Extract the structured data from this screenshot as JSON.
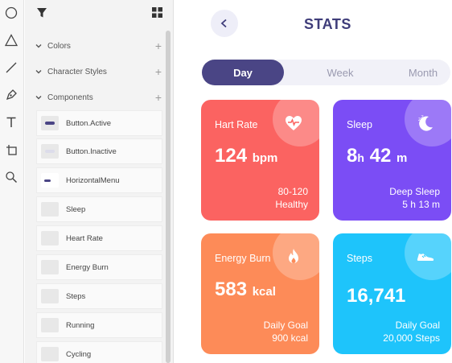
{
  "toolrail": {
    "tools": [
      "ellipse-tool-icon",
      "triangle-tool-icon",
      "line-tool-icon",
      "pen-tool-icon",
      "text-tool-icon",
      "artboard-tool-icon",
      "zoom-tool-icon"
    ]
  },
  "assets": {
    "sections": [
      {
        "label": "Colors"
      },
      {
        "label": "Character Styles"
      },
      {
        "label": "Components"
      }
    ],
    "components": [
      {
        "label": "Button.Active",
        "thumb_color": "#4a4585"
      },
      {
        "label": "Button.Inactive",
        "thumb_color": "#dcdcea"
      },
      {
        "label": "HorizontalMenu",
        "thumb_color": "#4a4585"
      },
      {
        "label": "Sleep",
        "thumb_color": "#cccccc"
      },
      {
        "label": "Heart Rate",
        "thumb_color": "#cccccc"
      },
      {
        "label": "Energy Burn",
        "thumb_color": "#cccccc"
      },
      {
        "label": "Steps",
        "thumb_color": "#cccccc"
      },
      {
        "label": "Running",
        "thumb_color": "#cccccc"
      },
      {
        "label": "Cycling",
        "thumb_color": "#cccccc"
      }
    ]
  },
  "app": {
    "title": "STATS",
    "tabs": [
      {
        "label": "Day",
        "active": true
      },
      {
        "label": "Week",
        "active": false
      },
      {
        "label": "Month",
        "active": false
      }
    ],
    "cards": {
      "heart": {
        "title": "Hart Rate",
        "value": "124",
        "unit": "bpm",
        "foot1": "80-120",
        "foot2": "Healthy",
        "color": "#fb6361"
      },
      "sleep": {
        "title": "Sleep",
        "value_h": "8",
        "unit_h": "h",
        "value_m": "42",
        "unit_m": "m",
        "foot1": "Deep Sleep",
        "foot2": "5 h 13 m",
        "color": "#7b4df5"
      },
      "energy": {
        "title": "Energy Burn",
        "value": "583",
        "unit": "kcal",
        "foot1": "Daily Goal",
        "foot2": "900 kcal",
        "color": "#fd8b58"
      },
      "steps": {
        "title": "Steps",
        "value": "16,741",
        "foot1": "Daily Goal",
        "foot2": "20,000 Steps",
        "color": "#1ec4fb"
      }
    }
  }
}
